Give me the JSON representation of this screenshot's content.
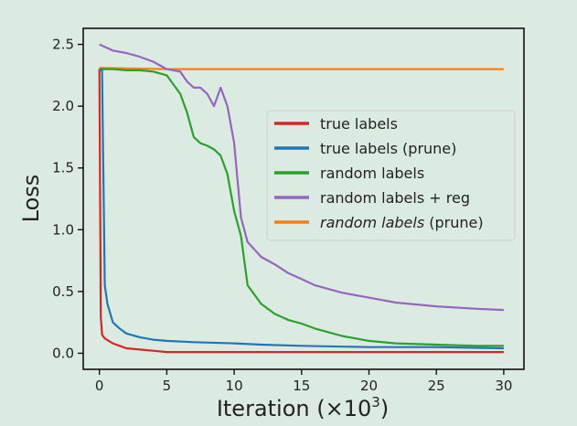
{
  "chart_data": {
    "type": "line",
    "xlabel": "Iteration (×10",
    "xlabel_sup": "3",
    "xlabel_close": ")",
    "ylabel": "Loss",
    "xlim": [
      -1.2,
      31.5
    ],
    "ylim": [
      -0.13,
      2.63
    ],
    "xticks": [
      0,
      5,
      10,
      15,
      20,
      25,
      30
    ],
    "yticks": [
      0.0,
      0.5,
      1.0,
      1.5,
      2.0,
      2.5
    ],
    "ytick_labels": [
      "0.0",
      "0.5",
      "1.0",
      "1.5",
      "2.0",
      "2.5"
    ],
    "grid": false,
    "legend_position": "center-right",
    "series": [
      {
        "name": "true labels",
        "color": "#d62728",
        "x": [
          0,
          0.1,
          0.2,
          0.4,
          0.7,
          1,
          1.5,
          2,
          3,
          4,
          5,
          7,
          10,
          15,
          20,
          25,
          30
        ],
        "y": [
          2.3,
          0.3,
          0.15,
          0.12,
          0.1,
          0.08,
          0.06,
          0.04,
          0.03,
          0.02,
          0.01,
          0.01,
          0.01,
          0.01,
          0.01,
          0.01,
          0.01
        ]
      },
      {
        "name": "true labels (prune)",
        "color": "#1f77b4",
        "x": [
          0,
          0.2,
          0.4,
          0.6,
          1,
          1.5,
          2,
          3,
          4,
          5,
          7,
          10,
          12,
          15,
          20,
          25,
          30
        ],
        "y": [
          2.3,
          2.29,
          0.55,
          0.4,
          0.25,
          0.2,
          0.16,
          0.13,
          0.11,
          0.1,
          0.09,
          0.08,
          0.07,
          0.06,
          0.05,
          0.05,
          0.04
        ]
      },
      {
        "name": "random labels",
        "color": "#2ca02c",
        "x": [
          0,
          1,
          2,
          3,
          4,
          5,
          6,
          6.5,
          7,
          7.5,
          8,
          8.5,
          9,
          9.5,
          10,
          10.5,
          11,
          12,
          13,
          14,
          15,
          16,
          18,
          20,
          22,
          25,
          28,
          30
        ],
        "y": [
          2.3,
          2.3,
          2.29,
          2.29,
          2.28,
          2.25,
          2.1,
          1.95,
          1.75,
          1.7,
          1.68,
          1.65,
          1.6,
          1.45,
          1.15,
          0.95,
          0.55,
          0.4,
          0.32,
          0.27,
          0.24,
          0.2,
          0.14,
          0.1,
          0.08,
          0.07,
          0.06,
          0.06
        ]
      },
      {
        "name": "random labels + reg",
        "color": "#9467bd",
        "x": [
          0,
          1,
          2,
          3,
          4,
          5,
          6,
          6.5,
          7,
          7.5,
          8,
          8.5,
          9,
          9.5,
          10,
          10.5,
          11,
          12,
          13,
          14,
          15,
          16,
          18,
          20,
          22,
          25,
          28,
          30
        ],
        "y": [
          2.5,
          2.45,
          2.43,
          2.4,
          2.36,
          2.3,
          2.28,
          2.2,
          2.15,
          2.15,
          2.1,
          2.0,
          2.15,
          2.0,
          1.7,
          1.1,
          0.9,
          0.78,
          0.72,
          0.65,
          0.6,
          0.55,
          0.49,
          0.45,
          0.41,
          0.38,
          0.36,
          0.35
        ]
      },
      {
        "name": "random labels",
        "name_suffix": " (prune)",
        "color": "#ff7f0e",
        "x": [
          0,
          5,
          10,
          15,
          20,
          25,
          30
        ],
        "y": [
          2.31,
          2.3,
          2.3,
          2.3,
          2.3,
          2.3,
          2.3
        ]
      }
    ]
  }
}
